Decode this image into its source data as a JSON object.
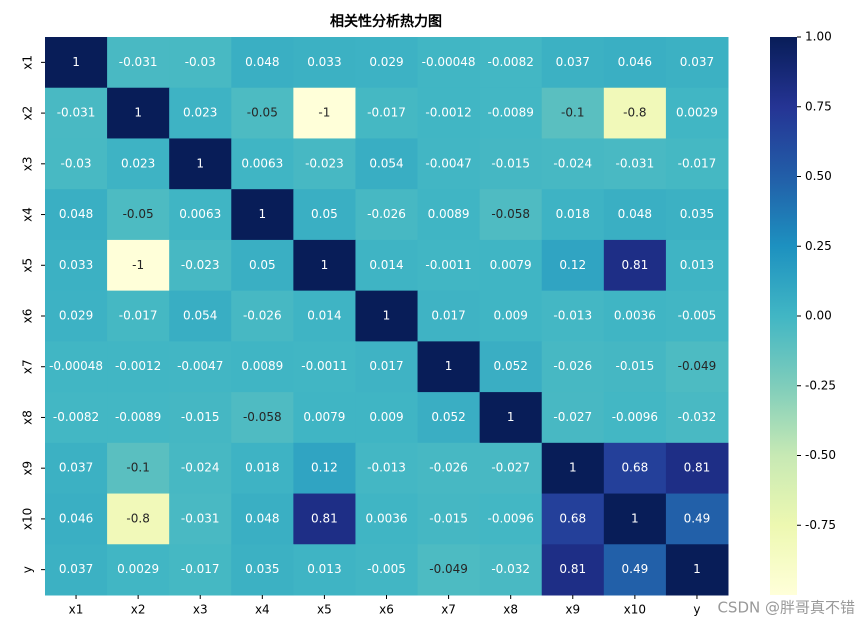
{
  "chart_data": {
    "type": "heatmap",
    "title": "相关性分析热力图",
    "x_categories": [
      "x1",
      "x2",
      "x3",
      "x4",
      "x5",
      "x6",
      "x7",
      "x8",
      "x9",
      "x10",
      "y"
    ],
    "y_categories": [
      "x1",
      "x2",
      "x3",
      "x4",
      "x5",
      "x6",
      "x7",
      "x8",
      "x9",
      "x10",
      "y"
    ],
    "values": [
      [
        1,
        -0.031,
        -0.03,
        0.048,
        0.033,
        0.029,
        -0.00048,
        -0.0082,
        0.037,
        0.046,
        0.037
      ],
      [
        -0.031,
        1,
        0.023,
        -0.05,
        -1,
        -0.017,
        -0.0012,
        -0.0089,
        -0.1,
        -0.8,
        0.0029
      ],
      [
        -0.03,
        0.023,
        1,
        0.0063,
        -0.023,
        0.054,
        -0.0047,
        -0.015,
        -0.024,
        -0.031,
        -0.017
      ],
      [
        0.048,
        -0.05,
        0.0063,
        1,
        0.05,
        -0.026,
        0.0089,
        -0.058,
        0.018,
        0.048,
        0.035
      ],
      [
        0.033,
        -1,
        -0.023,
        0.05,
        1,
        0.014,
        -0.0011,
        0.0079,
        0.12,
        0.81,
        0.013
      ],
      [
        0.029,
        -0.017,
        0.054,
        -0.026,
        0.014,
        1,
        0.017,
        0.009,
        -0.013,
        0.0036,
        -0.005
      ],
      [
        -0.00048,
        -0.0012,
        -0.0047,
        0.0089,
        -0.0011,
        0.017,
        1,
        0.052,
        -0.026,
        -0.015,
        -0.049
      ],
      [
        -0.0082,
        -0.0089,
        -0.015,
        -0.058,
        0.0079,
        0.009,
        0.052,
        1,
        -0.027,
        -0.0096,
        -0.032
      ],
      [
        0.037,
        -0.1,
        -0.024,
        0.018,
        0.12,
        -0.013,
        -0.026,
        -0.027,
        1,
        0.68,
        0.81
      ],
      [
        0.046,
        -0.8,
        -0.031,
        0.048,
        0.81,
        0.0036,
        -0.015,
        -0.0096,
        0.68,
        1,
        0.49
      ],
      [
        0.037,
        0.0029,
        -0.017,
        0.035,
        0.013,
        -0.005,
        -0.049,
        -0.032,
        0.81,
        0.49,
        1
      ]
    ],
    "colormap": "YlGnBu",
    "clim": [
      -1,
      1
    ],
    "colorbar_ticks": [
      {
        "value": 1,
        "label": "1.00"
      },
      {
        "value": 0.75,
        "label": "0.75"
      },
      {
        "value": 0.5,
        "label": "0.50"
      },
      {
        "value": 0.25,
        "label": "0.25"
      },
      {
        "value": 0,
        "label": "0.00"
      },
      {
        "value": -0.25,
        "label": "-0.25"
      },
      {
        "value": -0.5,
        "label": "-0.50"
      },
      {
        "value": -0.75,
        "label": "-0.75"
      }
    ],
    "watermark": "CSDN @胖哥真不错"
  }
}
